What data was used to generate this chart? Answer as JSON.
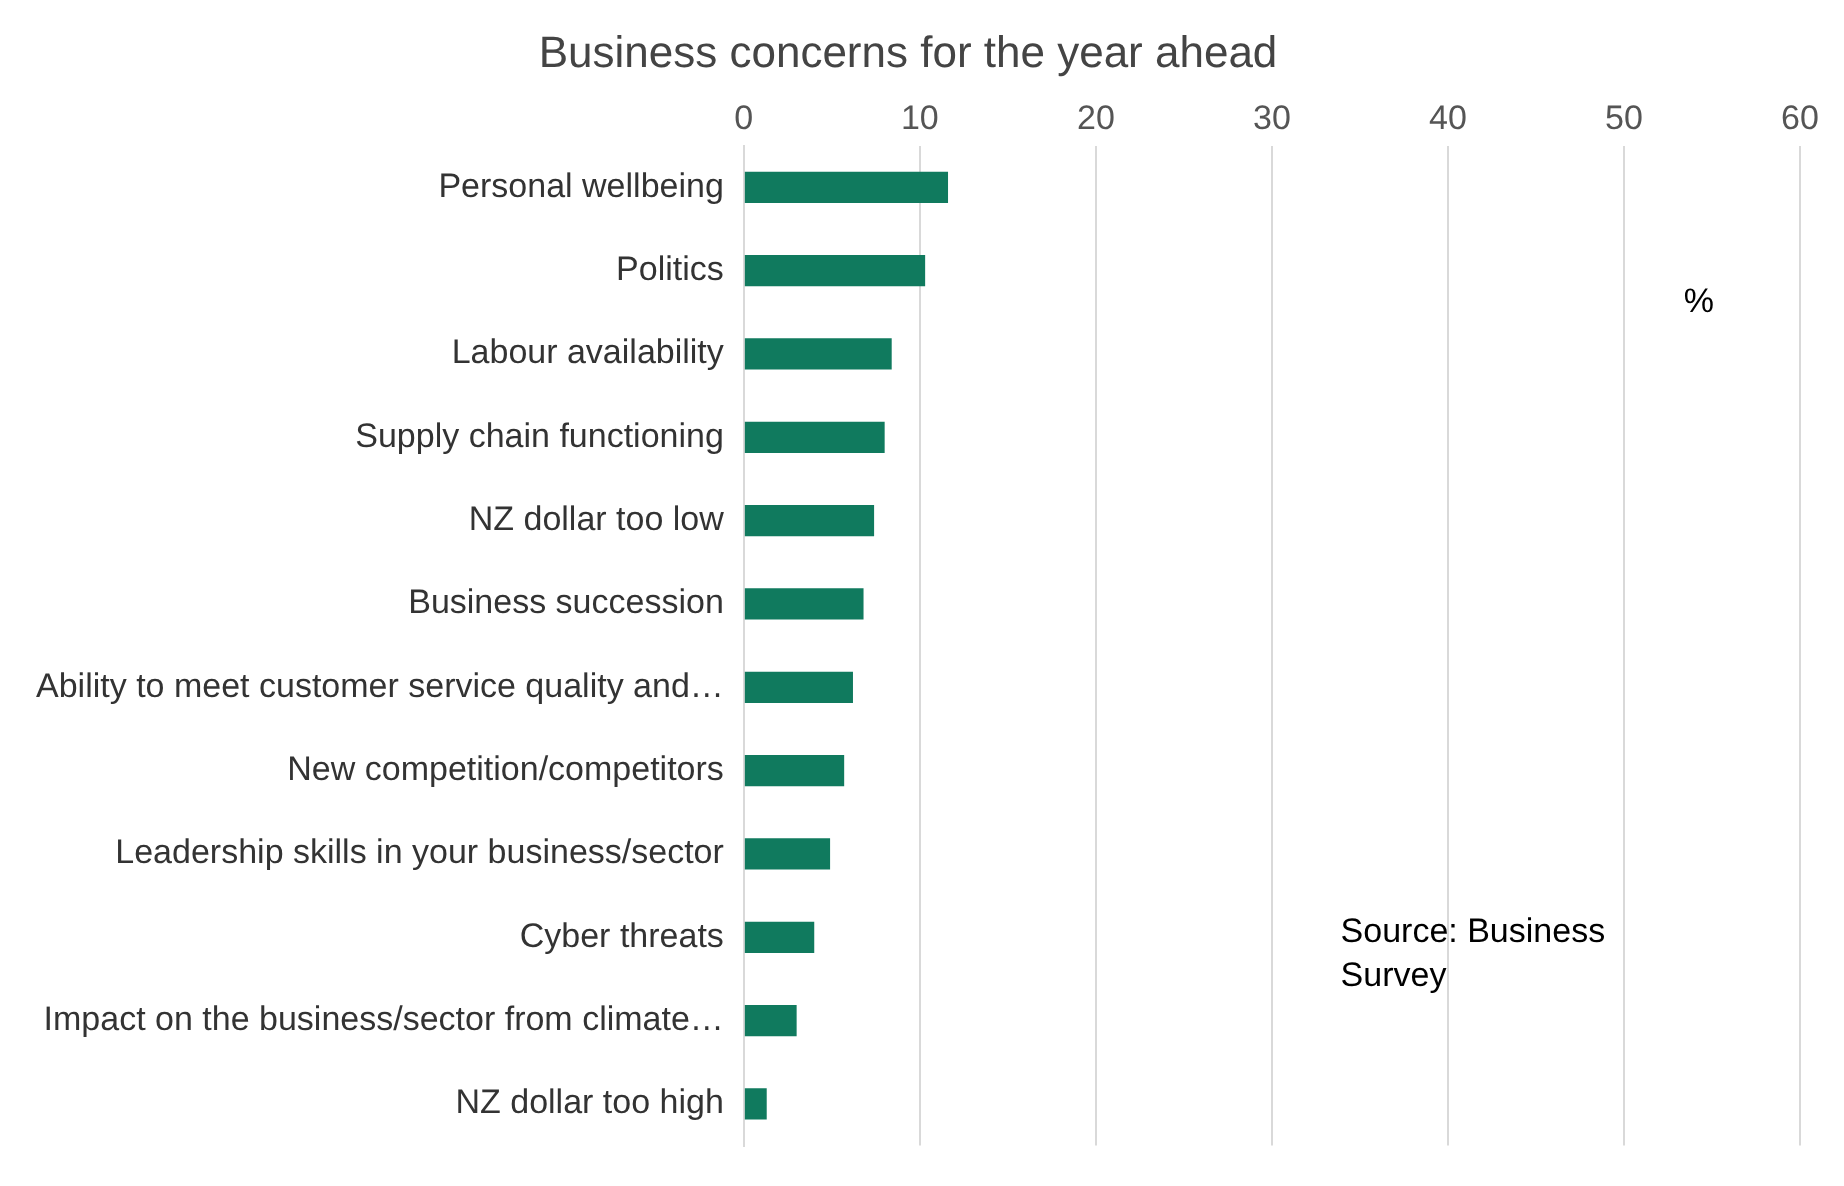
{
  "chart_data": {
    "type": "bar",
    "orientation": "horizontal",
    "title": "Business concerns for the year ahead",
    "categories": [
      "Personal wellbeing",
      "Politics",
      "Labour availability",
      "Supply chain functioning",
      "NZ dollar too low",
      "Business succession",
      "Ability to meet customer service quality and…",
      "New competition/competitors",
      "Leadership skills in your business/sector",
      "Cyber threats",
      "Impact on the business/sector from climate…",
      "NZ dollar too high"
    ],
    "values": [
      11.6,
      10.3,
      8.4,
      8.0,
      7.4,
      6.8,
      6.2,
      5.7,
      4.9,
      4.0,
      3.0,
      1.3
    ],
    "color": "#107a5e",
    "xlim": [
      0,
      60
    ],
    "xticks": [
      0,
      10,
      20,
      30,
      40,
      50,
      60
    ],
    "grid": "x",
    "legend": false,
    "annotations": [
      "%",
      "Source: Business Survey"
    ]
  }
}
